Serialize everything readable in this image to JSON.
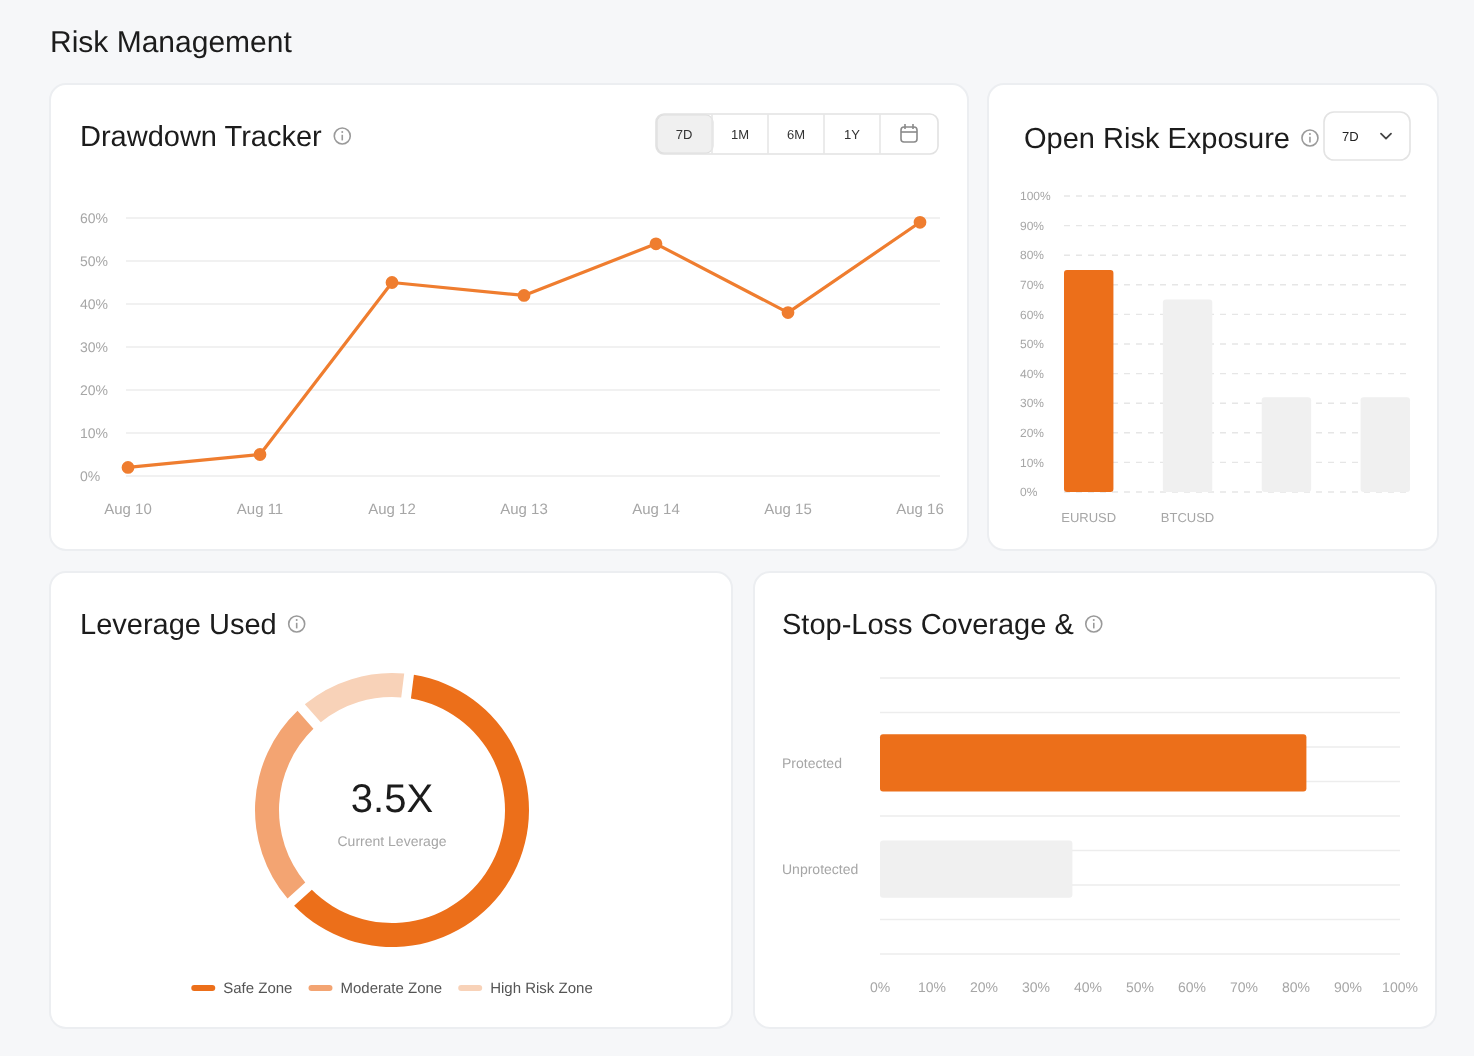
{
  "chart_data": [
    {
      "type": "other",
      "title": "Risk Management"
    },
    {
      "type": "line",
      "title": "Drawdown Tracker",
      "annotations": [
        "7D",
        "1M",
        "6M",
        "1Y"
      ],
      "categories": [
        "Aug 10",
        "Aug 11",
        "Aug 12",
        "Aug 13",
        "Aug 14",
        "Aug 15",
        "Aug 16"
      ],
      "series": [
        {
          "color": "#ef7d2f",
          "values": [
            2,
            5,
            45,
            42,
            54,
            38,
            59
          ]
        }
      ],
      "ylim": [
        0,
        60
      ],
      "yticks": [
        {
          "value": 0,
          "label": "0%"
        },
        {
          "value": 10,
          "label": "10%"
        },
        {
          "value": 20,
          "label": "20%"
        },
        {
          "value": 30,
          "label": "30%"
        },
        {
          "value": 40,
          "label": "40%"
        },
        {
          "value": 50,
          "label": "50%"
        },
        {
          "value": 60,
          "label": "60%"
        }
      ],
      "grid": "y",
      "marker": "circle"
    },
    {
      "type": "bar",
      "title": "Open Risk Exposure",
      "annotations": [
        "7D"
      ],
      "categories": [
        "EURUSD",
        "BTCUSD",
        null,
        null
      ],
      "values": [
        75,
        65,
        32,
        32
      ],
      "colors": [
        "#ec6f1a",
        "#f0f0f0",
        "#f0f0f0",
        "#f0f0f0"
      ],
      "ylim": [
        0,
        100
      ],
      "yticks": [
        {
          "value": 0,
          "label": "0%"
        },
        {
          "value": 10,
          "label": "10%"
        },
        {
          "value": 20,
          "label": "20%"
        },
        {
          "value": 30,
          "label": "30%"
        },
        {
          "value": 40,
          "label": "40%"
        },
        {
          "value": 50,
          "label": "50%"
        },
        {
          "value": 60,
          "label": "60%"
        },
        {
          "value": 70,
          "label": "70%"
        },
        {
          "value": 80,
          "label": "80%"
        },
        {
          "value": 90,
          "label": "90%"
        },
        {
          "value": 100,
          "label": "100%"
        }
      ],
      "grid": "y"
    },
    {
      "type": "donut",
      "title": "Leverage Used",
      "annotations": [
        "3.5X",
        "Current Leverage"
      ],
      "categories": [
        "Safe Zone",
        "Moderate Zone",
        "High Risk Zone"
      ],
      "values": [
        62,
        25,
        13
      ],
      "colors": [
        "#ec6f1a",
        "#f3a472",
        "#f8d2b8"
      ],
      "legend": "bottom"
    },
    {
      "type": "bar",
      "orientation": "horizontal",
      "title": "Stop-Loss Coverage &",
      "categories": [
        "Protected",
        "Unprotected"
      ],
      "values": [
        82,
        37
      ],
      "colors": [
        "#ec6f1a",
        "#f0f0f0"
      ],
      "xlim": [
        0,
        100
      ],
      "xticks": [
        {
          "value": 0,
          "label": "0%"
        },
        {
          "value": 10,
          "label": "10%"
        },
        {
          "value": 20,
          "label": "20%"
        },
        {
          "value": 30,
          "label": "30%"
        },
        {
          "value": 40,
          "label": "40%"
        },
        {
          "value": 50,
          "label": "50%"
        },
        {
          "value": 60,
          "label": "60%"
        },
        {
          "value": 70,
          "label": "70%"
        },
        {
          "value": 80,
          "label": "80%"
        },
        {
          "value": 90,
          "label": "90%"
        },
        {
          "value": 100,
          "label": "100%"
        }
      ],
      "grid": "y"
    }
  ]
}
